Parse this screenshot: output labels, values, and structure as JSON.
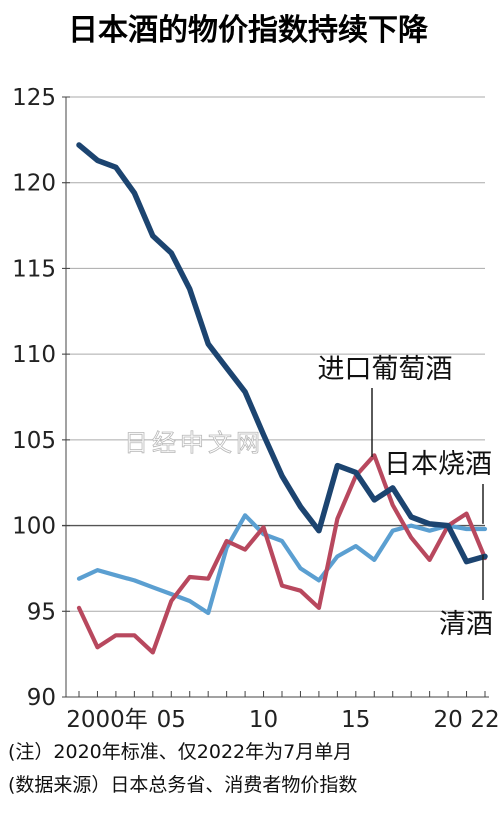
{
  "chart_data": {
    "type": "line",
    "title": "日本酒的物价指数持续下降",
    "x": [
      2000,
      2001,
      2002,
      2003,
      2004,
      2005,
      2006,
      2007,
      2008,
      2009,
      2010,
      2011,
      2012,
      2013,
      2014,
      2015,
      2016,
      2017,
      2018,
      2019,
      2020,
      2021,
      2022
    ],
    "x_tick_labels": [
      "2000年",
      "05",
      "10",
      "15",
      "20",
      "22"
    ],
    "x_tick_values": [
      2000,
      2005,
      2010,
      2015,
      2020,
      2022
    ],
    "y_tick_values": [
      90,
      95,
      100,
      105,
      110,
      115,
      120,
      125
    ],
    "ylim": [
      90,
      125
    ],
    "grid": "horizontal",
    "series": [
      {
        "name": "清酒",
        "color": "#1c4470",
        "values": [
          122.2,
          121.3,
          120.9,
          119.4,
          116.9,
          115.9,
          113.8,
          110.6,
          109.2,
          107.8,
          105.3,
          102.9,
          101.1,
          99.7,
          103.5,
          103.1,
          101.5,
          102.2,
          100.5,
          100.1,
          100.0,
          97.9,
          98.2
        ]
      },
      {
        "name": "进口葡萄酒",
        "color": "#b8485e",
        "values": [
          95.2,
          92.9,
          93.6,
          93.6,
          92.6,
          95.6,
          97.0,
          96.9,
          99.1,
          98.6,
          99.9,
          96.5,
          96.2,
          95.2,
          100.4,
          102.9,
          104.1,
          101.2,
          99.3,
          98.0,
          100.0,
          100.7,
          98.1
        ]
      },
      {
        "name": "日本烧酒",
        "color": "#5b9fd1",
        "values": [
          96.9,
          97.4,
          97.1,
          96.8,
          96.4,
          96.0,
          95.6,
          94.9,
          98.7,
          100.6,
          99.5,
          99.1,
          97.5,
          96.8,
          98.2,
          98.8,
          98.0,
          99.7,
          100.0,
          99.7,
          100.0,
          99.8,
          99.8
        ]
      }
    ]
  },
  "labels": {
    "wine": "进口葡萄酒",
    "shochu": "日本烧酒",
    "sake": "清酒"
  },
  "watermark": "日经中文网",
  "notes": {
    "note1": "(注）2020年标准、仅2022年为7月单月",
    "note2": "(数据来源）日本总务省、消费者物价指数"
  }
}
